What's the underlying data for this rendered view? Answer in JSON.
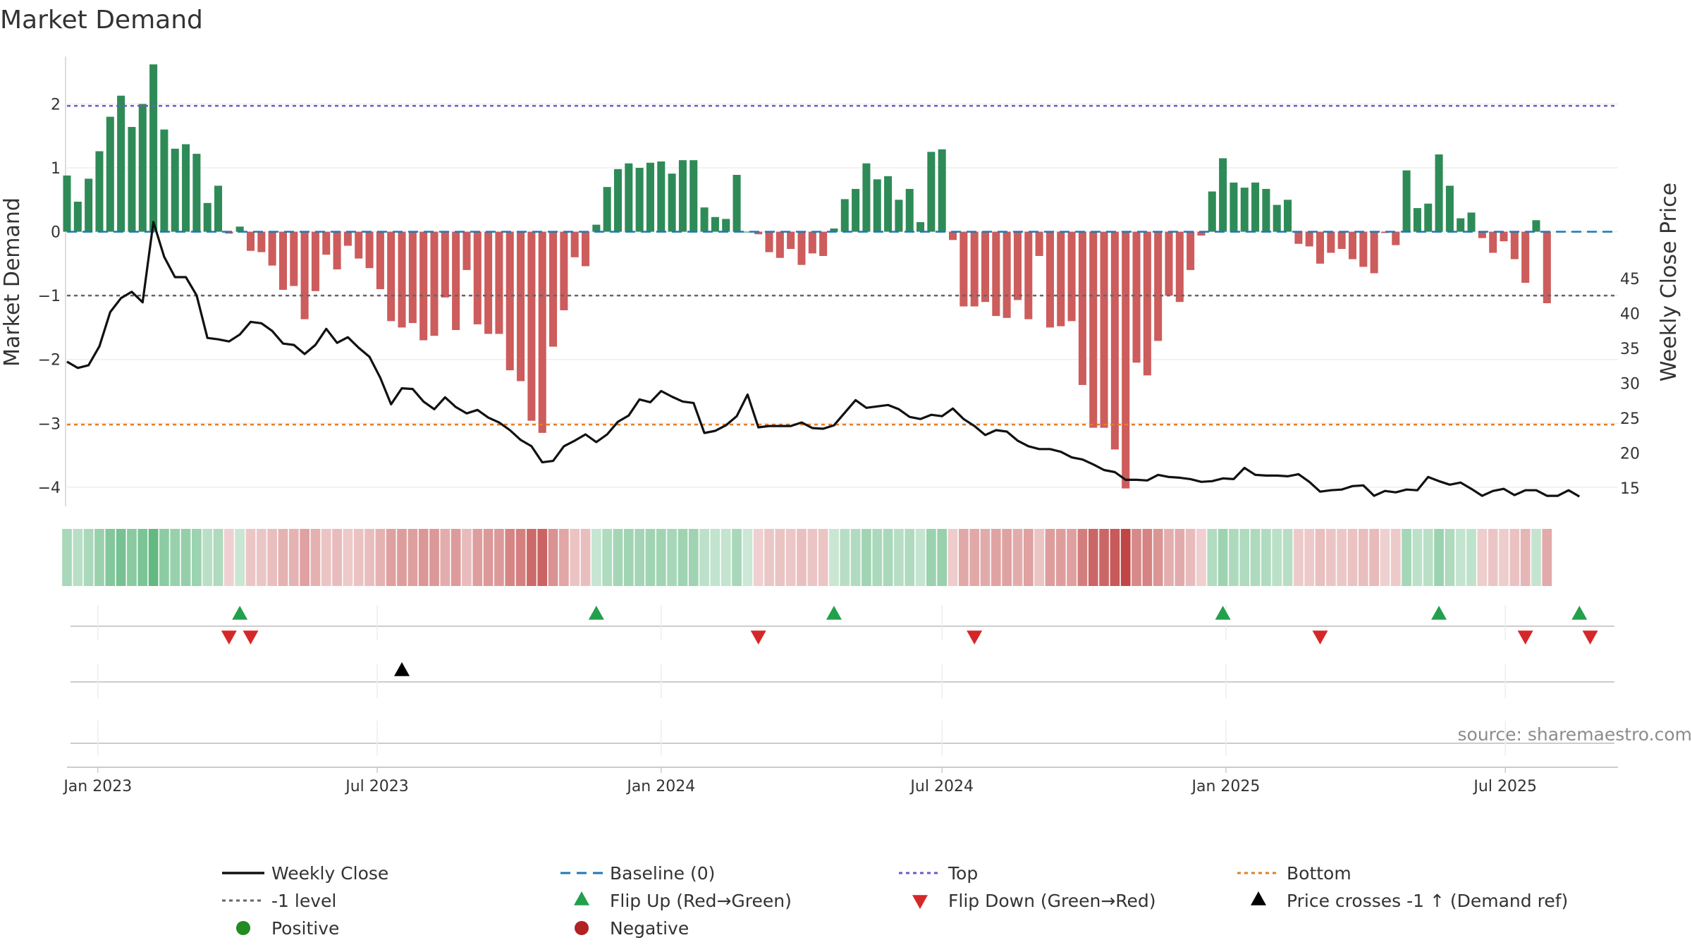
{
  "chart_data": {
    "type": "bar",
    "title": "Market Demand",
    "ylabel_left": "Market Demand",
    "ylabel_right": "Weekly Close Price",
    "y_left_range": [
      -4.3,
      2.8
    ],
    "y_left_ticks": [
      "2",
      "1",
      "0",
      "−1",
      "−2",
      "−3",
      "−4"
    ],
    "y_left_tick_values": [
      2,
      1,
      0,
      -1,
      -2,
      -3,
      -4
    ],
    "y_right_range": [
      12.4,
      77.3
    ],
    "y_right_ticks": [
      "45",
      "40",
      "35",
      "30",
      "25",
      "20",
      "15"
    ],
    "y_right_tick_values": [
      45,
      40,
      35,
      30,
      25,
      20,
      15
    ],
    "x_range": [
      "2022-12-12",
      "2025-09-12"
    ],
    "x_ticks": [
      {
        "label": "Jan 2023",
        "date": "2023-01-01"
      },
      {
        "label": "Jul 2023",
        "date": "2023-07-01"
      },
      {
        "label": "Jan 2024",
        "date": "2024-01-01"
      },
      {
        "label": "Jul 2024",
        "date": "2024-07-01"
      },
      {
        "label": "Jan 2025",
        "date": "2025-01-01"
      },
      {
        "label": "Jul 2025",
        "date": "2025-07-01"
      }
    ],
    "start_week": "2022-12-12",
    "demand": [
      0.88,
      0.47,
      0.83,
      1.26,
      1.8,
      2.13,
      1.64,
      2.0,
      2.62,
      1.6,
      1.3,
      1.37,
      1.22,
      0.45,
      0.72,
      -0.03,
      0.08,
      -0.3,
      -0.32,
      -0.53,
      -0.91,
      -0.85,
      -1.37,
      -0.93,
      -0.36,
      -0.59,
      -0.22,
      -0.42,
      -0.57,
      -0.9,
      -1.4,
      -1.5,
      -1.43,
      -1.7,
      -1.63,
      -1.03,
      -1.54,
      -0.6,
      -1.45,
      -1.6,
      -1.6,
      -2.17,
      -2.34,
      -2.96,
      -3.15,
      -1.8,
      -1.23,
      -0.4,
      -0.54,
      0.11,
      0.7,
      0.98,
      1.07,
      1.0,
      1.08,
      1.1,
      0.91,
      1.12,
      1.12,
      0.38,
      0.23,
      0.2,
      0.89,
      0.0,
      -0.04,
      -0.32,
      -0.41,
      -0.27,
      -0.52,
      -0.34,
      -0.38,
      0.05,
      0.51,
      0.67,
      1.07,
      0.82,
      0.87,
      0.5,
      0.67,
      0.15,
      1.25,
      1.29,
      -0.13,
      -1.17,
      -1.17,
      -1.1,
      -1.32,
      -1.35,
      -1.07,
      -1.37,
      -0.38,
      -1.5,
      -1.48,
      -1.4,
      -2.4,
      -3.07,
      -3.07,
      -3.41,
      -4.02,
      -2.05,
      -2.25,
      -1.71,
      -1.0,
      -1.1,
      -0.6,
      -0.06,
      0.63,
      1.15,
      0.77,
      0.69,
      0.77,
      0.67,
      0.42,
      0.5,
      -0.19,
      -0.23,
      -0.5,
      -0.33,
      -0.27,
      -0.43,
      -0.55,
      -0.65,
      -0.02,
      -0.21,
      0.96,
      0.37,
      0.44,
      1.21,
      0.72,
      0.21,
      0.3,
      -0.1,
      -0.33,
      -0.15,
      -0.43,
      -0.8,
      0.18,
      -1.12
    ],
    "close": [
      33.1,
      32.2,
      32.6,
      35.3,
      40.2,
      42.2,
      43.1,
      41.6,
      53.1,
      48.1,
      45.2,
      45.2,
      42.6,
      36.5,
      36.3,
      36.0,
      37.0,
      38.8,
      38.6,
      37.5,
      35.7,
      35.5,
      34.2,
      35.5,
      37.8,
      35.8,
      36.6,
      35.1,
      33.8,
      30.8,
      27.0,
      29.3,
      29.2,
      27.4,
      26.3,
      28.0,
      26.6,
      25.7,
      26.2,
      25.1,
      24.4,
      23.3,
      21.9,
      21.0,
      18.7,
      18.9,
      21.0,
      21.8,
      22.7,
      21.6,
      22.7,
      24.5,
      25.4,
      27.7,
      27.3,
      28.9,
      28.1,
      27.4,
      27.2,
      22.9,
      23.2,
      24.0,
      25.3,
      28.4,
      23.7,
      23.9,
      23.9,
      23.9,
      24.4,
      23.6,
      23.5,
      24.0,
      25.8,
      27.6,
      26.5,
      26.7,
      26.9,
      26.3,
      25.2,
      24.9,
      25.5,
      25.3,
      26.4,
      24.9,
      23.9,
      22.6,
      23.3,
      23.1,
      21.8,
      21.0,
      20.6,
      20.6,
      20.2,
      19.4,
      19.1,
      18.4,
      17.6,
      17.3,
      16.2,
      16.2,
      16.1,
      16.9,
      16.6,
      16.5,
      16.3,
      15.9,
      16.0,
      16.4,
      16.3,
      17.9,
      16.9,
      16.8,
      16.8,
      16.7,
      17.0,
      15.9,
      14.5,
      14.7,
      14.8,
      15.3,
      15.4,
      13.9,
      14.6,
      14.4,
      14.8,
      14.7,
      16.6,
      16.0,
      15.5,
      15.8,
      14.9,
      13.9,
      14.6,
      14.9,
      14.0,
      14.7,
      14.7,
      13.9,
      13.9,
      14.7,
      13.8
    ],
    "positive_hex": "#2e8b57",
    "negative_hex": "#cd5c5c",
    "reference_lines": [
      {
        "name": "Top",
        "value": 1.97,
        "color": "#6a5acd"
      },
      {
        "name": "-1 level",
        "value": -1.0,
        "color": "#666666"
      },
      {
        "name": "Bottom",
        "value": -3.02,
        "color": "#e67e22"
      }
    ],
    "flip_up_weeks": [
      16,
      49,
      71,
      107,
      127,
      140
    ],
    "flip_down_weeks": [
      15,
      17,
      64,
      84,
      116,
      135,
      141
    ],
    "price_cross_weeks": [
      31
    ],
    "legend": [
      {
        "label": "Weekly Close",
        "marker": "line"
      },
      {
        "label": "Baseline (0)",
        "marker": "dashed"
      },
      {
        "label": "Top",
        "marker": "dotted-purple"
      },
      {
        "label": "Bottom",
        "marker": "dotted-orange"
      },
      {
        "label": "-1 level",
        "marker": "dotted-gray"
      },
      {
        "label": "Flip Up (Red→Green)",
        "marker": "triangle-up-green"
      },
      {
        "label": "Flip Down (Green→Red)",
        "marker": "triangle-down-red"
      },
      {
        "label": "Price crosses -1 ↑ (Demand ref)",
        "marker": "triangle-up-black"
      },
      {
        "label": "Positive",
        "marker": "circle-green"
      },
      {
        "label": "Negative",
        "marker": "circle-red"
      }
    ],
    "source": "source: sharemaestro.com"
  }
}
